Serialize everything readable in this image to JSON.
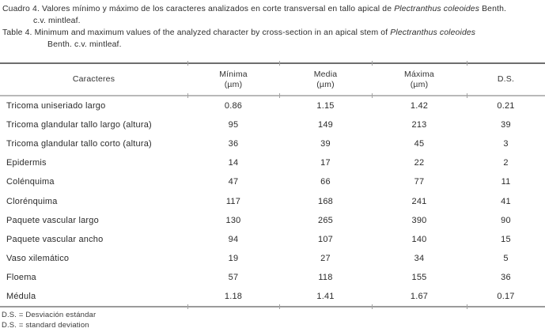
{
  "colors": {
    "background": "#ffffff",
    "text": "#2a2a2a",
    "rule_dark": "#6e6e6e",
    "rule_light": "#b9b9b9",
    "rule_bottom": "#9b9b9b"
  },
  "caption_es": {
    "line1_part1": "Cuadro 4. Valores mínimo y máximo de los caracteres analizados en corte transversal en tallo apical de ",
    "line1_italic": "Plectranthus coleoides",
    "line1_part2": " Benth.",
    "line2": "c.v. mintleaf."
  },
  "caption_en": {
    "line1_part1": "Table 4. Minimum and maximum values of the analyzed character by cross-section in an apical stem of ",
    "line1_italic": "Plectranthus coleoides",
    "line1_part2": "",
    "line2": "Benth. c.v. mintleaf."
  },
  "table": {
    "columns": [
      {
        "label": "Caracteres",
        "sub": ""
      },
      {
        "label": "Mínima",
        "sub": "(µm)"
      },
      {
        "label": "Media",
        "sub": "(µm)"
      },
      {
        "label": "Máxima",
        "sub": "(µm)"
      },
      {
        "label": "D.S.",
        "sub": ""
      }
    ],
    "rows": [
      [
        "Tricoma uniseriado largo",
        "0.86",
        "1.15",
        "1.42",
        "0.21"
      ],
      [
        "Tricoma glandular tallo largo (altura)",
        "95",
        "149",
        "213",
        "39"
      ],
      [
        "Tricoma glandular tallo corto (altura)",
        "36",
        "39",
        "45",
        "3"
      ],
      [
        "Epidermis",
        "14",
        "17",
        "22",
        "2"
      ],
      [
        "Colénquima",
        "47",
        "66",
        "77",
        "11"
      ],
      [
        "Clorénquima",
        "117",
        "168",
        "241",
        "41"
      ],
      [
        "Paquete vascular largo",
        "130",
        "265",
        "390",
        "90"
      ],
      [
        "Paquete vascular ancho",
        "94",
        "107",
        "140",
        "15"
      ],
      [
        "Vaso xilemático",
        "19",
        "27",
        "34",
        "5"
      ],
      [
        "Floema",
        "57",
        "118",
        "155",
        "36"
      ],
      [
        "Médula",
        "1.18",
        "1.41",
        "1.67",
        "0.17"
      ]
    ]
  },
  "footnotes": {
    "es": "D.S. = Desviación estándar",
    "en": "D.S. = standard deviation"
  }
}
